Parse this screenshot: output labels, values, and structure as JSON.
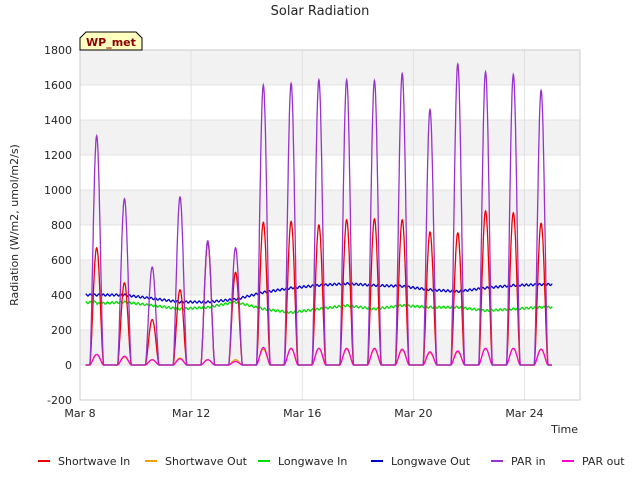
{
  "chart_data": {
    "type": "line",
    "title": "Solar Radiation",
    "xlabel": "Time",
    "ylabel": "Radiation (W/m2, umol/m2/s)",
    "badge": "WP_met",
    "x_start_day": 8,
    "x_end_day": 26,
    "xlim": [
      8,
      26
    ],
    "ylim": [
      -200,
      1800
    ],
    "yticks": [
      -200,
      0,
      200,
      400,
      600,
      800,
      1000,
      1200,
      1400,
      1600,
      1800
    ],
    "xticks": [
      {
        "day": 8,
        "label": "Mar 8"
      },
      {
        "day": 12,
        "label": "Mar 12"
      },
      {
        "day": 16,
        "label": "Mar 16"
      },
      {
        "day": 20,
        "label": "Mar 20"
      },
      {
        "day": 24,
        "label": "Mar 24"
      }
    ],
    "grid": true,
    "legend_position": "bottom",
    "day_centers": [
      8.6,
      9.6,
      10.6,
      11.6,
      12.6,
      13.6,
      14.6,
      15.6,
      16.6,
      17.6,
      18.6,
      19.6,
      20.6,
      21.6,
      22.6,
      23.6,
      24.6
    ],
    "series": [
      {
        "name": "Shortwave In",
        "color": "#ee0000",
        "values": [
          670,
          470,
          260,
          430,
          700,
          530,
          815,
          820,
          800,
          830,
          835,
          830,
          760,
          755,
          880,
          870,
          810
        ]
      },
      {
        "name": "Shortwave Out",
        "color": "#f0a000",
        "values": [
          60,
          45,
          30,
          40,
          30,
          30,
          90,
          95,
          95,
          90,
          90,
          85,
          70,
          75,
          95,
          95,
          90
        ]
      },
      {
        "name": "Longwave In",
        "color": "#00dd00",
        "values": [
          350,
          360,
          340,
          320,
          330,
          360,
          320,
          300,
          320,
          340,
          320,
          340,
          330,
          330,
          310,
          320,
          330
        ]
      },
      {
        "name": "Longwave Out",
        "color": "#0000cc",
        "values": [
          400,
          400,
          380,
          360,
          360,
          375,
          415,
          440,
          455,
          465,
          455,
          450,
          430,
          420,
          440,
          455,
          460
        ]
      },
      {
        "name": "PAR in",
        "color": "#9932cc",
        "values": [
          1310,
          950,
          560,
          960,
          710,
          670,
          1600,
          1610,
          1630,
          1630,
          1625,
          1665,
          1460,
          1720,
          1675,
          1660,
          1570
        ]
      },
      {
        "name": "PAR out",
        "color": "#ff00cc",
        "values": [
          60,
          50,
          30,
          35,
          30,
          20,
          100,
          95,
          95,
          95,
          95,
          90,
          75,
          80,
          95,
          95,
          90
        ]
      }
    ]
  }
}
